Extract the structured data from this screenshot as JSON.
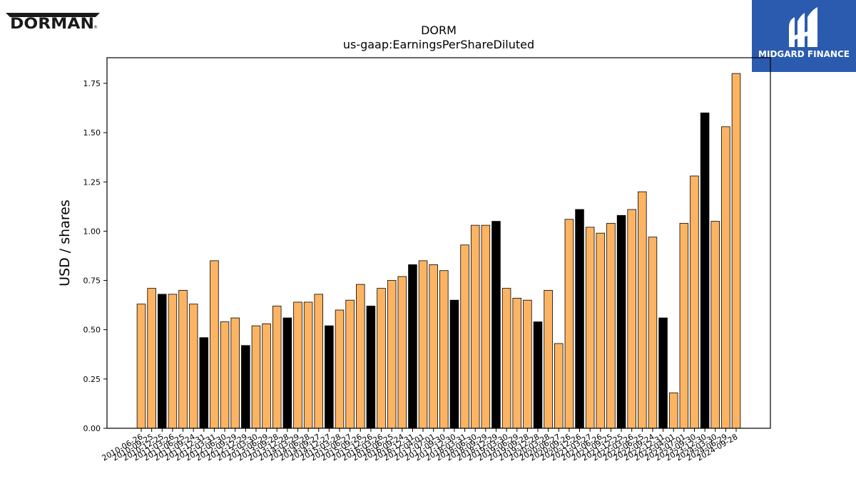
{
  "header": {
    "company_logo_text": "DORMAN",
    "brand_logo_text": "MIDGARD FINANCE"
  },
  "colors": {
    "bar_default": "#FDB462",
    "bar_highlight": "#000000",
    "brand_background": "#2B5BAE"
  },
  "chart_data": {
    "type": "bar",
    "title": "DORM",
    "subtitle": "us-gaap:EarningsPerShareDiluted",
    "xlabel": "",
    "ylabel": "USD / shares",
    "ylim": [
      0,
      1.88
    ],
    "yticks": [
      "0.00",
      "0.25",
      "0.50",
      "0.75",
      "1.00",
      "1.25",
      "1.50",
      "1.75"
    ],
    "ytick_values": [
      0,
      0.25,
      0.5,
      0.75,
      1.0,
      1.25,
      1.5,
      1.75
    ],
    "grid": false,
    "categories": [
      "2010-06-26",
      "2010-09-25",
      "2010-12-25",
      "2011-03-26",
      "2011-06-25",
      "2011-09-24",
      "2011-12-31",
      "2012-03-31",
      "2012-06-30",
      "2012-09-29",
      "2012-12-29",
      "2013-03-30",
      "2013-06-29",
      "2013-09-28",
      "2013-12-28",
      "2014-03-29",
      "2014-06-28",
      "2014-09-27",
      "2014-12-27",
      "2015-03-28",
      "2015-06-27",
      "2015-09-26",
      "2015-12-26",
      "2016-03-26",
      "2016-06-25",
      "2016-09-24",
      "2016-12-31",
      "2017-04-01",
      "2017-07-01",
      "2017-09-30",
      "2017-12-30",
      "2018-03-31",
      "2018-06-30",
      "2018-09-29",
      "2018-12-29",
      "2019-03-30",
      "2019-06-29",
      "2019-09-28",
      "2019-12-28",
      "2020-03-28",
      "2020-06-27",
      "2020-09-26",
      "2020-12-26",
      "2021-03-27",
      "2021-06-26",
      "2021-09-25",
      "2021-12-25",
      "2022-03-26",
      "2022-06-25",
      "2022-09-24",
      "2022-12-31",
      "2023-04-01",
      "2023-07-01",
      "2023-09-30",
      "2023-12-30",
      "2024-03-30",
      "2024-06-29",
      "2024-09-28"
    ],
    "values": [
      0.63,
      0.71,
      0.68,
      0.68,
      0.7,
      0.63,
      0.46,
      0.85,
      0.54,
      0.56,
      0.42,
      0.52,
      0.53,
      0.62,
      0.56,
      0.64,
      0.64,
      0.68,
      0.52,
      0.6,
      0.65,
      0.73,
      0.62,
      0.71,
      0.75,
      0.77,
      0.83,
      0.85,
      0.83,
      0.8,
      0.65,
      0.93,
      1.03,
      1.03,
      1.05,
      0.71,
      0.66,
      0.65,
      0.54,
      0.7,
      0.43,
      1.06,
      1.11,
      1.02,
      0.99,
      1.04,
      1.08,
      1.11,
      1.2,
      0.97,
      0.56,
      0.18,
      1.04,
      1.28,
      1.6,
      1.05,
      1.53,
      1.8
    ],
    "highlight": [
      false,
      false,
      true,
      false,
      false,
      false,
      true,
      false,
      false,
      false,
      true,
      false,
      false,
      false,
      true,
      false,
      false,
      false,
      true,
      false,
      false,
      false,
      true,
      false,
      false,
      false,
      true,
      false,
      false,
      false,
      true,
      false,
      false,
      false,
      true,
      false,
      false,
      false,
      true,
      false,
      false,
      false,
      true,
      false,
      false,
      false,
      true,
      false,
      false,
      false,
      true,
      false,
      false,
      false,
      true,
      false,
      false,
      false
    ]
  }
}
